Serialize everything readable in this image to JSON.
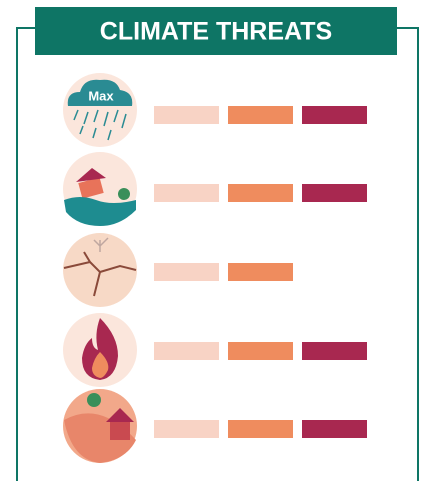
{
  "header": {
    "title": "CLIMATE THREATS"
  },
  "threats": [
    {
      "icon_label": "Max",
      "level": 3
    },
    {
      "level": 3
    },
    {
      "level": 2
    },
    {
      "level": 3
    },
    {
      "level": 3
    }
  ],
  "level_colors": [
    "#f8d3c5",
    "#ef8c5e",
    "#a82850"
  ],
  "max_level": 3
}
